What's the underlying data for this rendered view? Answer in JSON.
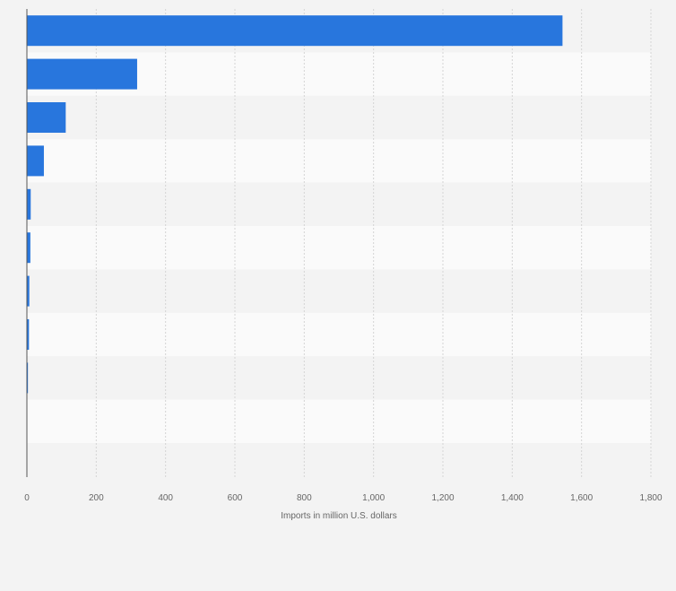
{
  "chart_data": {
    "type": "bar",
    "orientation": "horizontal",
    "title": "",
    "xlabel": "Imports in million U.S. dollars",
    "ylabel": "",
    "xlim": [
      0,
      1800
    ],
    "xticks": [
      0,
      200,
      400,
      600,
      800,
      1000,
      1200,
      1400,
      1600,
      1800
    ],
    "xtick_labels": [
      "0",
      "200",
      "400",
      "600",
      "800",
      "1,000",
      "1,200",
      "1,400",
      "1,600",
      "1,800"
    ],
    "categories": [
      "",
      "",
      "",
      "",
      "",
      "",
      "",
      "",
      "",
      ""
    ],
    "values": [
      1545,
      318,
      112,
      49,
      11,
      10,
      7,
      6,
      3,
      0.5
    ],
    "grid": true,
    "bar_color": "#2876dd",
    "row_colors": [
      "#f3f3f3",
      "#fafafa"
    ],
    "grid_color": "#d4d4d4",
    "background": "#f3f3f3"
  }
}
